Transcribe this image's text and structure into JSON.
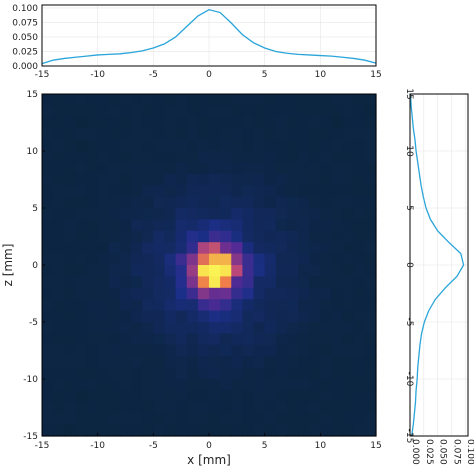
{
  "chart_data": [
    {
      "type": "heatmap",
      "xlabel": "x [mm]",
      "ylabel": "z [mm]",
      "xlim": [
        -15,
        15
      ],
      "ylim": [
        -15,
        15
      ],
      "xticks": [
        "-15",
        "-10",
        "-5",
        "0",
        "5",
        "10",
        "15"
      ],
      "yticks": [
        "-15",
        "-10",
        "-5",
        "0",
        "5",
        "10",
        "15"
      ],
      "bins": 30,
      "center": [
        0.5,
        -0.5
      ],
      "core_sigma_mm": 1.5,
      "halo_sigma_mm": 4.5,
      "peak_value": 1.0,
      "colormap": [
        "#0a2438",
        "#1c2f8a",
        "#5a2a95",
        "#b8487a",
        "#ef7b4a",
        "#f8d84a",
        "#fcff5a"
      ],
      "grid": false
    },
    {
      "type": "line",
      "title": "",
      "xlabel": "",
      "ylabel": "",
      "xlim": [
        -15,
        15
      ],
      "ylim": [
        0,
        0.105
      ],
      "xticks": [
        "-15",
        "-10",
        "-5",
        "0",
        "5",
        "10",
        "15"
      ],
      "yticks": [
        "0.000",
        "0.025",
        "0.050",
        "0.075",
        "0.100"
      ],
      "x": [
        -15,
        -14,
        -13,
        -12,
        -11,
        -10,
        -9,
        -8,
        -7,
        -6,
        -5,
        -4,
        -3,
        -2,
        -1,
        0,
        1,
        2,
        3,
        4,
        5,
        6,
        7,
        8,
        9,
        10,
        11,
        12,
        13,
        14,
        15
      ],
      "y": [
        0.004,
        0.01,
        0.013,
        0.015,
        0.017,
        0.019,
        0.02,
        0.021,
        0.023,
        0.026,
        0.031,
        0.038,
        0.05,
        0.068,
        0.086,
        0.097,
        0.092,
        0.074,
        0.054,
        0.04,
        0.031,
        0.025,
        0.022,
        0.02,
        0.019,
        0.018,
        0.017,
        0.015,
        0.013,
        0.01,
        0.005
      ],
      "color": "#2aa5d9",
      "grid": true
    },
    {
      "type": "line",
      "title": "",
      "xlabel": "",
      "ylabel": "",
      "orientation": "vertical",
      "xlim": [
        0,
        0.105
      ],
      "ylim": [
        -15,
        15
      ],
      "xticks": [
        "0.000",
        "0.025",
        "0.050",
        "0.075",
        "0.100"
      ],
      "yticks": [
        "-15",
        "-10",
        "-5",
        "0",
        "5",
        "10",
        "15"
      ],
      "z": [
        -15,
        -14,
        -13,
        -12,
        -11,
        -10,
        -9,
        -8,
        -7,
        -6,
        -5,
        -4,
        -3,
        -2,
        -1,
        0,
        1,
        2,
        3,
        4,
        5,
        6,
        7,
        8,
        9,
        10,
        11,
        12,
        13,
        14,
        15
      ],
      "values": [
        0.003,
        0.006,
        0.008,
        0.01,
        0.011,
        0.013,
        0.014,
        0.016,
        0.018,
        0.021,
        0.026,
        0.034,
        0.046,
        0.064,
        0.085,
        0.097,
        0.092,
        0.07,
        0.05,
        0.037,
        0.029,
        0.024,
        0.02,
        0.017,
        0.014,
        0.011,
        0.009,
        0.006,
        0.004,
        0.002,
        0.001
      ],
      "color": "#2aa5d9",
      "grid": true
    }
  ]
}
